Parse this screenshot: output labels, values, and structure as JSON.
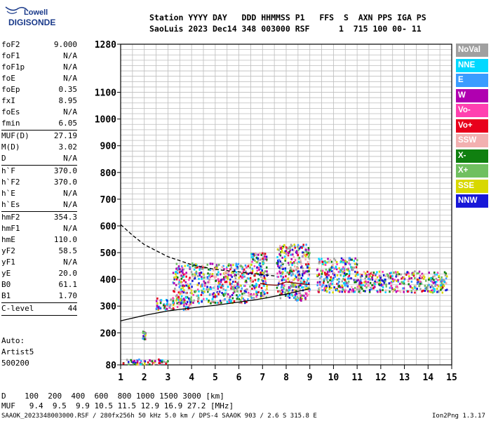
{
  "header": {
    "logo_top": "Lowell",
    "logo_bottom": "DIGISONDE",
    "line1": "Station YYYY DAY   DDD HHMMSS P1   FFS  S  AXN PPS IGA PS",
    "line2": "SaoLuis 2023 Dec14 348 003000 RSF      1  715 100 00- 11"
  },
  "params": [
    {
      "k": "foF2",
      "v": "9.000"
    },
    {
      "k": "foF1",
      "v": "N/A"
    },
    {
      "k": "foF1p",
      "v": "N/A"
    },
    {
      "k": "foE",
      "v": "N/A"
    },
    {
      "k": "foEp",
      "v": "0.35"
    },
    {
      "k": "fxI",
      "v": "8.95"
    },
    {
      "k": "foEs",
      "v": "N/A"
    },
    {
      "k": "fmin",
      "v": "6.05"
    },
    {
      "sep": true
    },
    {
      "k": "MUF(D)",
      "v": "27.19"
    },
    {
      "k": "M(D)",
      "v": "3.02"
    },
    {
      "k": "D",
      "v": "N/A"
    },
    {
      "sep": true
    },
    {
      "k": "h`F",
      "v": "370.0"
    },
    {
      "k": "h`F2",
      "v": "370.0"
    },
    {
      "k": "h`E",
      "v": "N/A"
    },
    {
      "k": "h`Es",
      "v": "N/A"
    },
    {
      "sep": true
    },
    {
      "k": "hmF2",
      "v": "354.3"
    },
    {
      "k": "hmF1",
      "v": "N/A"
    },
    {
      "k": "hmE",
      "v": "110.0"
    },
    {
      "k": "yF2",
      "v": "58.5"
    },
    {
      "k": "yF1",
      "v": "N/A"
    },
    {
      "k": "yE",
      "v": "20.0"
    },
    {
      "k": "B0",
      "v": "61.1"
    },
    {
      "k": "B1",
      "v": "1.70"
    },
    {
      "sep": true
    },
    {
      "k": "C-level",
      "v": "44"
    },
    {
      "sep": true
    }
  ],
  "auto": {
    "line1": "Auto:",
    "line2": "Artist5",
    "line3": "500200"
  },
  "legend": [
    {
      "label": "NoVal",
      "color": "#a0a0a0"
    },
    {
      "label": "NNE",
      "color": "#00d8ff"
    },
    {
      "label": "E",
      "color": "#3a9cff"
    },
    {
      "label": "W",
      "color": "#b000b0"
    },
    {
      "label": "Vo-",
      "color": "#ff40b0"
    },
    {
      "label": "Vo+",
      "color": "#e8001c"
    },
    {
      "label": "SSW",
      "color": "#f2b0b0"
    },
    {
      "label": "X-",
      "color": "#108010"
    },
    {
      "label": "X+",
      "color": "#70c060"
    },
    {
      "label": "SSE",
      "color": "#d8d800"
    },
    {
      "label": "NNW",
      "color": "#1818d8"
    }
  ],
  "bottom": {
    "d_line": "D    100  200  400  600  800 1000 1500 3000 [km]",
    "muf_line": "MUF   9.4  9.5  9.9 10.5 11.5 12.9 16.9 27.2 [MHz]"
  },
  "footer": {
    "left": "SAAOK_2023348003000.RSF / 280fx256h 50 kHz 5.0 km / DPS-4 SAAOK 903 / 2.6 S 315.8 E",
    "right": "Ion2Png 1.3.17"
  },
  "chart_data": {
    "type": "scatter",
    "title": "",
    "xlabel": "",
    "ylabel": "",
    "xlim": [
      1,
      15
    ],
    "ylim": [
      80,
      1280
    ],
    "x_ticks": [
      1,
      2,
      3,
      4,
      5,
      6,
      7,
      8,
      9,
      10,
      11,
      12,
      13,
      14,
      15
    ],
    "y_ticks": [
      80,
      200,
      300,
      400,
      500,
      600,
      700,
      800,
      900,
      1000,
      1100,
      1280
    ],
    "grid": true,
    "series": [
      {
        "style": "dashed",
        "color": "#000000",
        "points": [
          [
            1,
            605
          ],
          [
            1.5,
            565
          ],
          [
            2,
            530
          ],
          [
            3,
            485
          ],
          [
            4,
            455
          ],
          [
            5,
            437
          ],
          [
            6,
            428
          ],
          [
            7,
            418
          ],
          [
            7.6,
            412
          ]
        ]
      },
      {
        "style": "solid",
        "color": "#000000",
        "points": [
          [
            1,
            245
          ],
          [
            2,
            265
          ],
          [
            3,
            282
          ],
          [
            4,
            293
          ],
          [
            5,
            303
          ],
          [
            6,
            315
          ],
          [
            7,
            328
          ],
          [
            8,
            345
          ],
          [
            8.5,
            355
          ],
          [
            9,
            365
          ]
        ]
      },
      {
        "style": "solid",
        "color": "#7a0000",
        "points": [
          [
            6.9,
            385
          ],
          [
            7.2,
            380
          ],
          [
            7.6,
            378
          ],
          [
            8,
            390
          ],
          [
            8.5,
            385
          ],
          [
            9,
            380
          ]
        ]
      }
    ],
    "echo_clusters": [
      {
        "x": [
          1.1,
          3.0
        ],
        "y": [
          80,
          100
        ]
      },
      {
        "x": [
          1.9,
          2.05
        ],
        "y": [
          175,
          205
        ]
      },
      {
        "x": [
          2.5,
          4.0
        ],
        "y": [
          285,
          330
        ]
      },
      {
        "x": [
          3.2,
          6.5
        ],
        "y": [
          310,
          460
        ]
      },
      {
        "x": [
          6.5,
          7.2
        ],
        "y": [
          330,
          500
        ]
      },
      {
        "x": [
          7.6,
          9.0
        ],
        "y": [
          320,
          530
        ]
      },
      {
        "x": [
          9.3,
          11.0
        ],
        "y": [
          350,
          480
        ]
      },
      {
        "x": [
          11.0,
          14.8
        ],
        "y": [
          350,
          430
        ]
      }
    ]
  }
}
